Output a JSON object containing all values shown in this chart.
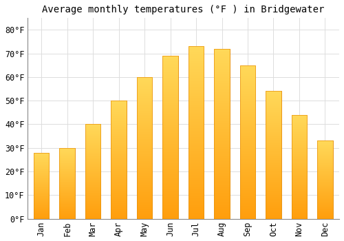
{
  "months": [
    "Jan",
    "Feb",
    "Mar",
    "Apr",
    "May",
    "Jun",
    "Jul",
    "Aug",
    "Sep",
    "Oct",
    "Nov",
    "Dec"
  ],
  "values": [
    28,
    30,
    40,
    50,
    60,
    69,
    73,
    72,
    65,
    54,
    44,
    33
  ],
  "bar_color_top": "#FFD060",
  "bar_color_bottom": "#FFA000",
  "bar_edge_color": "#E8900A",
  "title": "Average monthly temperatures (°F ) in Bridgewater",
  "ylim": [
    0,
    85
  ],
  "yticks": [
    0,
    10,
    20,
    30,
    40,
    50,
    60,
    70,
    80
  ],
  "ytick_labels": [
    "0°F",
    "10°F",
    "20°F",
    "30°F",
    "40°F",
    "50°F",
    "60°F",
    "70°F",
    "80°F"
  ],
  "background_color": "#FFFFFF",
  "grid_color": "#DDDDDD",
  "title_fontsize": 10,
  "tick_fontsize": 8.5,
  "bar_width": 0.6
}
